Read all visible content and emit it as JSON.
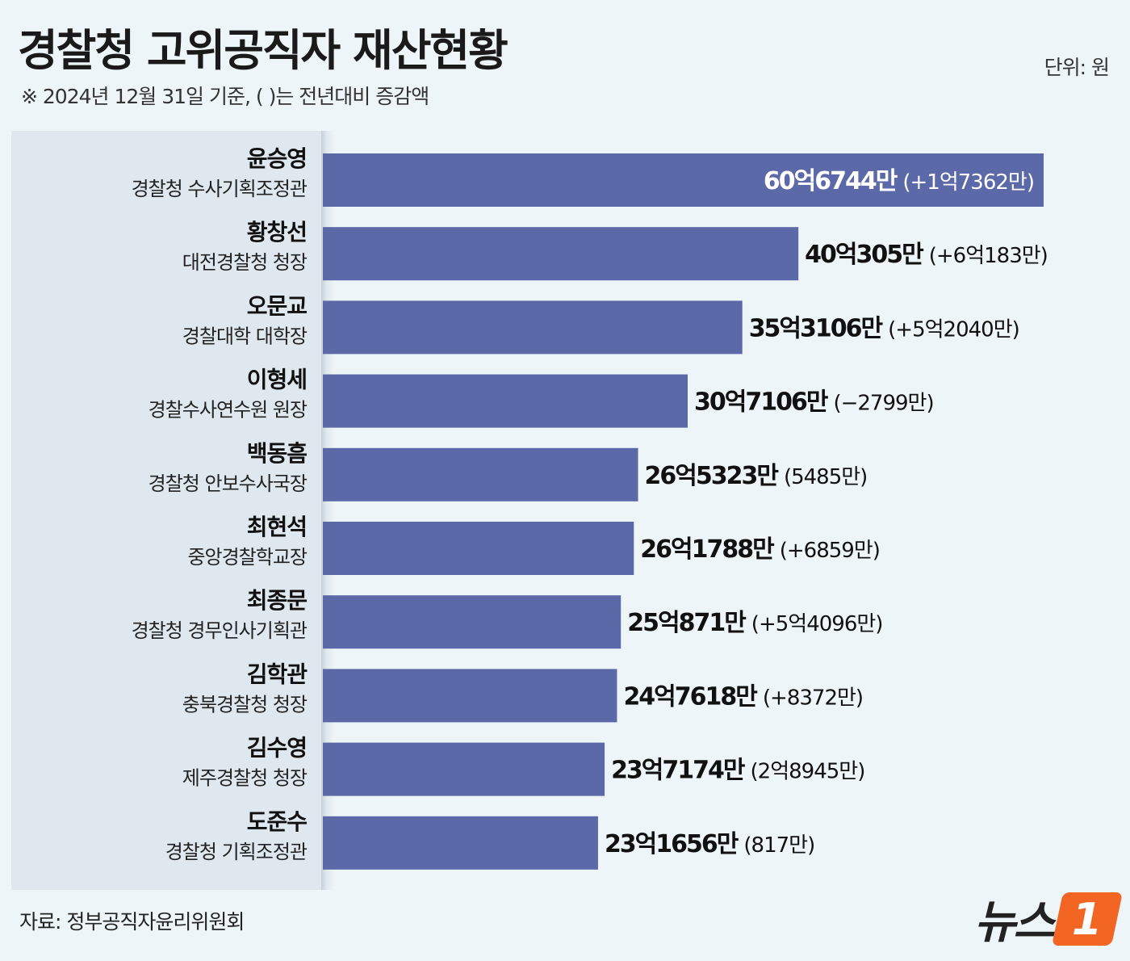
{
  "header": {
    "title": "경찰청 고위공직자 재산현황",
    "subtitle": "※ 2024년 12월 31일 기준,  (   )는 전년대비 증감액",
    "unit": "단위: 원"
  },
  "footer": {
    "source": "자료: 정부공직자윤리위원회",
    "logo_text": "뉴스",
    "logo_badge": "1"
  },
  "colors": {
    "bar": "#5b69a8",
    "accent": "#f26522",
    "inside_label": "#ffffff",
    "outside_label": "#111111"
  },
  "chart_data": {
    "type": "bar",
    "orientation": "horizontal",
    "unit": "원",
    "categories": [
      {
        "name": "윤승영",
        "position": "경찰청 수사기획조정관"
      },
      {
        "name": "황창선",
        "position": "대전경찰청 청장"
      },
      {
        "name": "오문교",
        "position": "경찰대학 대학장"
      },
      {
        "name": "이형세",
        "position": "경찰수사연수원 원장"
      },
      {
        "name": "백동흠",
        "position": "경찰청 안보수사국장"
      },
      {
        "name": "최현석",
        "position": "중앙경찰학교장"
      },
      {
        "name": "최종문",
        "position": "경찰청 경무인사기획관"
      },
      {
        "name": "김학관",
        "position": "충북경찰청 청장"
      },
      {
        "name": "김수영",
        "position": "제주경찰청 청장"
      },
      {
        "name": "도준수",
        "position": "경찰청 기획조정관"
      }
    ],
    "values": [
      6067440000,
      4003050000,
      3531060000,
      3071060000,
      2653230000,
      2617880000,
      2508710000,
      2476180000,
      2371740000,
      2316560000
    ],
    "value_labels": [
      "60억6744만",
      "40억305만",
      "35억3106만",
      "30억7106만",
      "26억5323만",
      "26억1788만",
      "25억871만",
      "24억7618만",
      "23억7174만",
      "23억1656만"
    ],
    "change_labels": [
      "(+1억7362만)",
      "(+6억183만)",
      "(+5억2040만)",
      "(−2799만)",
      "(5485만)",
      "(+6859만)",
      "(+5억4096만)",
      "(+8372만)",
      "(2억8945만)",
      "(817만)"
    ],
    "label_inside": [
      true,
      false,
      false,
      false,
      false,
      false,
      false,
      false,
      false,
      false
    ]
  }
}
